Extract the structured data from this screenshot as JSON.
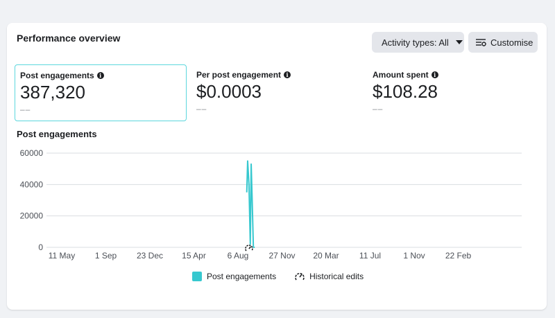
{
  "card": {
    "title": "Performance overview",
    "activity_button": "Activity types: All",
    "customise_button": "Customise"
  },
  "metrics": [
    {
      "label": "Post engagements",
      "value": "387,320",
      "compare": "––",
      "selected": true
    },
    {
      "label": "Per post engagement",
      "value": "$0.0003",
      "compare": "––",
      "selected": false
    },
    {
      "label": "Amount spent",
      "value": "$108.28",
      "compare": "––",
      "selected": false
    }
  ],
  "chart_title": "Post engagements",
  "legend": {
    "series_label": "Post engagements",
    "edits_label": "Historical edits"
  },
  "colors": {
    "series": "#37c8cf",
    "grid": "#dadde1",
    "accent_border": "#5cd7dd"
  },
  "icons": {
    "info": "info-icon",
    "caret": "chevron-down-icon",
    "customise": "sliders-icon",
    "historical_edit": "gauge-icon"
  },
  "chart_data": {
    "type": "line",
    "title": "Post engagements",
    "xlabel": "",
    "ylabel": "",
    "ylim": [
      0,
      60000
    ],
    "yticks": [
      "0",
      "20000",
      "40000",
      "60000"
    ],
    "xticks": [
      "11 May",
      "1 Sep",
      "23 Dec",
      "15 Apr",
      "6 Aug",
      "27 Nov",
      "20 Mar",
      "11 Jul",
      "1 Nov",
      "22 Feb"
    ],
    "grid": true,
    "legend_position": "bottom",
    "series": [
      {
        "name": "Post engagements",
        "x_tick_index": [
          4.2,
          4.22,
          4.25,
          4.28,
          4.3,
          4.32,
          4.35,
          4.38
        ],
        "values": [
          35000,
          55000,
          40000,
          2000,
          53000,
          33000,
          0,
          0
        ]
      }
    ],
    "markers": [
      {
        "type": "historical_edit",
        "x_tick_index": 4.25
      }
    ]
  }
}
